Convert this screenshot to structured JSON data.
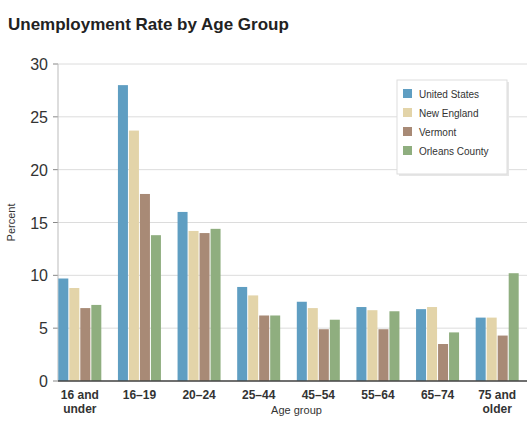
{
  "chart_data": {
    "type": "bar",
    "title": "Unemployment Rate by Age Group",
    "x_label": "Age group",
    "y_label": "Percent",
    "categories": [
      "16 and under",
      "16–19",
      "20–24",
      "25–44",
      "45–54",
      "55–64",
      "65–74",
      "75 and older"
    ],
    "series": [
      {
        "name": "United States",
        "color": "#5f9ec2",
        "values": [
          9.7,
          28.0,
          16.0,
          8.9,
          7.5,
          7.0,
          6.8,
          6.0
        ]
      },
      {
        "name": "New England",
        "color": "#e3d4a9",
        "values": [
          8.8,
          23.7,
          14.2,
          8.1,
          6.9,
          6.7,
          7.0,
          6.0
        ]
      },
      {
        "name": "Vermont",
        "color": "#a88a76",
        "values": [
          6.9,
          17.7,
          14.0,
          6.2,
          4.9,
          4.9,
          3.5,
          4.3
        ]
      },
      {
        "name": "Orleans County",
        "color": "#8fae7f",
        "values": [
          7.2,
          13.8,
          14.4,
          6.2,
          5.8,
          6.6,
          4.6,
          10.2
        ]
      }
    ],
    "ylim": [
      0,
      30
    ],
    "yticks": [
      0,
      5,
      10,
      15,
      20,
      25,
      30
    ],
    "grid": true,
    "legend": "top-right"
  }
}
